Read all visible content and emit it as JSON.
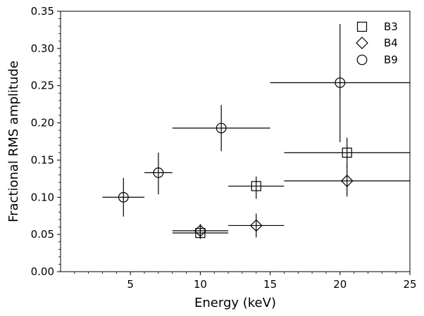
{
  "chart_data": {
    "type": "scatter",
    "title": "",
    "xlabel": "Energy (keV)",
    "ylabel": "Fractional RMS amplitude",
    "xlim": [
      0,
      25
    ],
    "ylim": [
      0,
      0.35
    ],
    "x_ticks": [
      5,
      10,
      15,
      20,
      25
    ],
    "x_tick_labels": [
      "5",
      "10",
      "15",
      "20",
      "25"
    ],
    "y_ticks": [
      0,
      0.05,
      0.1,
      0.15,
      0.2,
      0.25,
      0.3,
      0.35
    ],
    "y_tick_labels": [
      "0.00",
      "0.05",
      "0.10",
      "0.15",
      "0.20",
      "0.25",
      "0.30",
      "0.35"
    ],
    "grid": false,
    "legend_position": "top-right",
    "series": [
      {
        "name": "B3",
        "marker": "square",
        "points": [
          {
            "x": 10,
            "xlo": 8,
            "xhi": 12,
            "y": 0.052,
            "ylo": 0.044,
            "yhi": 0.06
          },
          {
            "x": 14,
            "xlo": 12,
            "xhi": 16,
            "y": 0.115,
            "ylo": 0.098,
            "yhi": 0.128
          },
          {
            "x": 20.5,
            "xlo": 16,
            "xhi": 25,
            "y": 0.16,
            "ylo": 0.14,
            "yhi": 0.18
          }
        ]
      },
      {
        "name": "B4",
        "marker": "diamond",
        "points": [
          {
            "x": 10,
            "xlo": 8,
            "xhi": 12,
            "y": 0.055,
            "ylo": 0.046,
            "yhi": 0.064
          },
          {
            "x": 14,
            "xlo": 12,
            "xhi": 16,
            "y": 0.062,
            "ylo": 0.046,
            "yhi": 0.078
          },
          {
            "x": 20.5,
            "xlo": 16,
            "xhi": 25,
            "y": 0.122,
            "ylo": 0.101,
            "yhi": 0.143
          }
        ]
      },
      {
        "name": "B9",
        "marker": "circle",
        "points": [
          {
            "x": 4.5,
            "xlo": 3,
            "xhi": 6,
            "y": 0.1,
            "ylo": 0.074,
            "yhi": 0.126
          },
          {
            "x": 7,
            "xlo": 6,
            "xhi": 8,
            "y": 0.133,
            "ylo": 0.104,
            "yhi": 0.16
          },
          {
            "x": 11.5,
            "xlo": 8,
            "xhi": 15,
            "y": 0.193,
            "ylo": 0.162,
            "yhi": 0.224
          },
          {
            "x": 20,
            "xlo": 15,
            "xhi": 25,
            "y": 0.254,
            "ylo": 0.174,
            "yhi": 0.333
          }
        ]
      }
    ]
  }
}
